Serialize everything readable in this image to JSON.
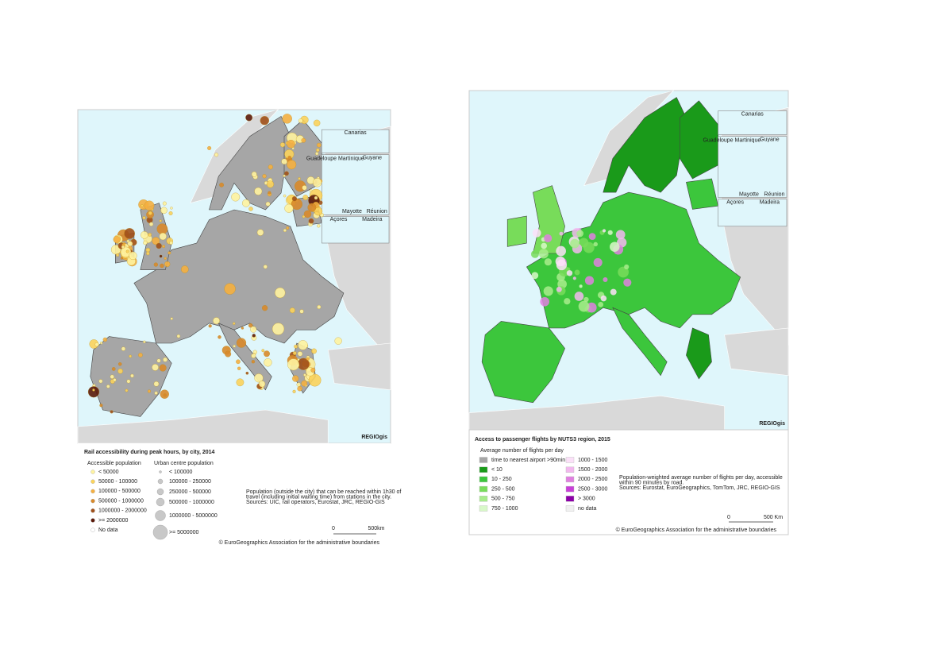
{
  "left_map": {
    "insets": [
      "Canarias",
      "Guadeloupe Martinique",
      "Guyane",
      "Mayotte",
      "Réunion",
      "Açores",
      "Madeira"
    ],
    "logo": "REGIOgis",
    "title": "Rail accessibility during peak hours, by city, 2014",
    "legend_accessible": {
      "heading": "Accessible population",
      "items": [
        {
          "label": "< 50000",
          "color": "#fff3a0"
        },
        {
          "label": "50000 - 100000",
          "color": "#fbd35c"
        },
        {
          "label": "100000 - 500000",
          "color": "#f5b041"
        },
        {
          "label": "500000 - 1000000",
          "color": "#d98a2b"
        },
        {
          "label": "1000000 - 2000000",
          "color": "#a0501a"
        },
        {
          "label": ">= 2000000",
          "color": "#5c1a0a"
        },
        {
          "label": "No data",
          "color": "#ffffff"
        }
      ]
    },
    "legend_urban": {
      "heading": "Urban centre population",
      "items": [
        "< 100000",
        "100000 - 250000",
        "250000 - 500000",
        "500000 - 1000000",
        "1000000 - 5000000",
        ">= 5000000"
      ]
    },
    "note": [
      "Population (outside the city) that can be reached within 1h30 of",
      "travel (including initial waiting time) from stations in the city.",
      "Sources: UIC, rail operators, Eurostat, JRC, REGIO-GIS"
    ],
    "scale": [
      "0",
      "500km"
    ],
    "copyright": "© EuroGeographics Association for the administrative boundaries"
  },
  "right_map": {
    "insets": [
      "Canarias",
      "Guadeloupe Martinique",
      "Guyane",
      "Mayotte",
      "Réunion",
      "Açores",
      "Madeira"
    ],
    "logo": "REGIOgis",
    "title": "Access to passenger flights by NUTS3 region, 2015",
    "legend": {
      "heading": "Average number of flights per day",
      "items": [
        {
          "label": "time to nearest airport >90min",
          "color": "#a6a6a6"
        },
        {
          "label": "< 10",
          "color": "#1a9a1a"
        },
        {
          "label": "10 - 250",
          "color": "#3cc63c"
        },
        {
          "label": "250 - 500",
          "color": "#78dc5a"
        },
        {
          "label": "500 - 750",
          "color": "#a8ec8c"
        },
        {
          "label": "750 - 1000",
          "color": "#d8f8c8"
        },
        {
          "label": "1000 - 1500",
          "color": "#fbe0f8"
        },
        {
          "label": "1500 - 2000",
          "color": "#f2b8ee"
        },
        {
          "label": "2000 - 2500",
          "color": "#e080e0"
        },
        {
          "label": "2500 - 3000",
          "color": "#c840d8"
        },
        {
          "label": "> 3000",
          "color": "#8c00a8"
        },
        {
          "label": "no data",
          "color": "#f0f0f0"
        }
      ]
    },
    "note": [
      "Population-weighted average number of flights per day, accessible",
      "within 90 minutes by road.",
      "Sources: Eurostat, EuroGeographics, TomTom, JRC, REGIO-GIS"
    ],
    "scale": [
      "0",
      "500 Km"
    ],
    "copyright": "© EuroGeographics Association for the administrative boundaries"
  }
}
